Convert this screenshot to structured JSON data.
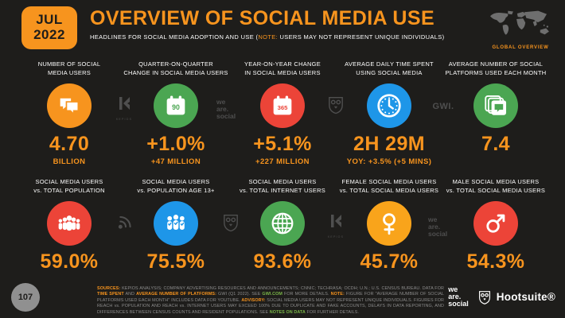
{
  "header": {
    "date_month": "JUL",
    "date_year": "2022",
    "title": "OVERVIEW OF SOCIAL MEDIA USE",
    "subtitle_segments": [
      {
        "t": "HEADLINES FOR SOCIAL MEDIA ADOPTION AND USE ("
      },
      {
        "t": "NOTE:",
        "c": "orange"
      },
      {
        "t": " USERS MAY NOT REPRESENT UNIQUE INDIVIDUALS)"
      }
    ],
    "global_overview_label": "GLOBAL OVERVIEW"
  },
  "colors": {
    "background": "#1E1D1B",
    "accent_orange": "#F7941E",
    "green": "#4BA652",
    "red": "#EC4438",
    "blue": "#1E96E8",
    "amber": "#F9A41B",
    "watermark_gray": "#4F4F4F",
    "footer_text_gray": "#8C8C8C",
    "link_green": "#7AB648"
  },
  "stats_row1": [
    {
      "label": "NUMBER OF SOCIAL\nMEDIA USERS",
      "icon": "chat-bubbles",
      "color": "#F7941E",
      "value": "4.70",
      "sub": "BILLION"
    },
    {
      "label": "QUARTER-ON-QUARTER\nCHANGE IN SOCIAL MEDIA USERS",
      "icon": "calendar-90",
      "icon_label": "90",
      "color": "#4BA652",
      "value": "+1.0%",
      "sub": "+47 MILLION"
    },
    {
      "label": "YEAR-ON-YEAR CHANGE\nIN SOCIAL MEDIA USERS",
      "icon": "calendar-365",
      "icon_label": "365",
      "color": "#EC4438",
      "value": "+5.1%",
      "sub": "+227 MILLION"
    },
    {
      "label": "AVERAGE DAILY TIME SPENT\nUSING SOCIAL MEDIA",
      "icon": "clock",
      "color": "#1E96E8",
      "value": "2H 29M",
      "sub": "YOY: +3.5% (+5 MINS)"
    },
    {
      "label": "AVERAGE NUMBER OF SOCIAL\nPLATFORMS USED EACH MONTH",
      "icon": "stacked-platforms",
      "color": "#4BA652",
      "value": "7.4",
      "sub": ""
    }
  ],
  "stats_row2": [
    {
      "label": "SOCIAL MEDIA USERS\nvs. TOTAL POPULATION",
      "icon": "people-group",
      "color": "#EC4438",
      "value": "59.0%"
    },
    {
      "label": "SOCIAL MEDIA USERS\nvs. POPULATION AGE 13+",
      "icon": "people-check",
      "color": "#1E96E8",
      "value": "75.5%"
    },
    {
      "label": "SOCIAL MEDIA USERS\nvs. TOTAL INTERNET USERS",
      "icon": "globe",
      "color": "#4BA652",
      "value": "93.6%"
    },
    {
      "label": "FEMALE SOCIAL MEDIA USERS\nvs. TOTAL SOCIAL MEDIA USERS",
      "icon": "female-symbol",
      "color": "#F9A41B",
      "value": "45.7%"
    },
    {
      "label": "MALE SOCIAL MEDIA USERS\nvs. TOTAL SOCIAL MEDIA USERS",
      "icon": "male-symbol",
      "color": "#EC4438",
      "value": "54.3%"
    }
  ],
  "watermarks": {
    "kepios_caption": "KEPIOS",
    "we_are_social_text": "we\nare.\nsocial",
    "gwi_text": "GWI."
  },
  "footer": {
    "page_number": "107",
    "sources_segments": [
      {
        "t": "SOURCES:",
        "c": "orange"
      },
      {
        "t": " KEPIOS ANALYSIS; COMPANY ADVERTISING RESOURCES AND ANNOUNCEMENTS; CNNIC; TECHRASA; OCDH; U.N.; U.S. CENSUS BUREAU. DATA FOR "
      },
      {
        "t": "TIME SPENT",
        "c": "orange"
      },
      {
        "t": " AND "
      },
      {
        "t": "AVERAGE NUMBER OF PLATFORMS:",
        "c": "orange"
      },
      {
        "t": " GWI (Q1 2022). SEE "
      },
      {
        "t": "GWI.COM",
        "c": "green"
      },
      {
        "t": " FOR MORE DETAILS. "
      },
      {
        "t": "NOTE:",
        "c": "orange"
      },
      {
        "t": " FIGURE FOR \"AVERAGE NUMBER OF SOCIAL PLATFORMS USED EACH MONTH\" INCLUDES DATA FOR YOUTUBE. "
      },
      {
        "t": "ADVISORY:",
        "c": "orange"
      },
      {
        "t": " SOCIAL MEDIA USERS MAY NOT REPRESENT UNIQUE INDIVIDUALS. FIGURES FOR REACH vs. POPULATION AND REACH vs. INTERNET USERS MAY EXCEED 100% DUE TO DUPLICATE AND FAKE ACCOUNTS, DELAYS IN DATA REPORTING, AND DIFFERENCES BETWEEN CENSUS COUNTS AND RESIDENT POPULATIONS. SEE "
      },
      {
        "t": "NOTES ON DATA",
        "c": "green"
      },
      {
        "t": " FOR FURTHER DETAILS."
      }
    ],
    "we_are_social_logo": "we\nare.\nsocial",
    "hootsuite_label": "Hootsuite®"
  },
  "chart_data": {
    "type": "table",
    "title": "OVERVIEW OF SOCIAL MEDIA USE",
    "subtitle": "HEADLINES FOR SOCIAL MEDIA ADOPTION AND USE (NOTE: USERS MAY NOT REPRESENT UNIQUE INDIVIDUALS)",
    "date": "JUL 2022",
    "scope": "GLOBAL OVERVIEW",
    "metrics": [
      {
        "label": "NUMBER OF SOCIAL MEDIA USERS",
        "value": "4.70 BILLION"
      },
      {
        "label": "QUARTER-ON-QUARTER CHANGE IN SOCIAL MEDIA USERS",
        "value": "+1.0%",
        "detail": "+47 MILLION"
      },
      {
        "label": "YEAR-ON-YEAR CHANGE IN SOCIAL MEDIA USERS",
        "value": "+5.1%",
        "detail": "+227 MILLION"
      },
      {
        "label": "AVERAGE DAILY TIME SPENT USING SOCIAL MEDIA",
        "value": "2H 29M",
        "detail": "YOY: +3.5% (+5 MINS)"
      },
      {
        "label": "AVERAGE NUMBER OF SOCIAL PLATFORMS USED EACH MONTH",
        "value": "7.4"
      },
      {
        "label": "SOCIAL MEDIA USERS vs. TOTAL POPULATION",
        "value": "59.0%"
      },
      {
        "label": "SOCIAL MEDIA USERS vs. POPULATION AGE 13+",
        "value": "75.5%"
      },
      {
        "label": "SOCIAL MEDIA USERS vs. TOTAL INTERNET USERS",
        "value": "93.6%"
      },
      {
        "label": "FEMALE SOCIAL MEDIA USERS vs. TOTAL SOCIAL MEDIA USERS",
        "value": "45.7%"
      },
      {
        "label": "MALE SOCIAL MEDIA USERS vs. TOTAL SOCIAL MEDIA USERS",
        "value": "54.3%"
      }
    ]
  }
}
